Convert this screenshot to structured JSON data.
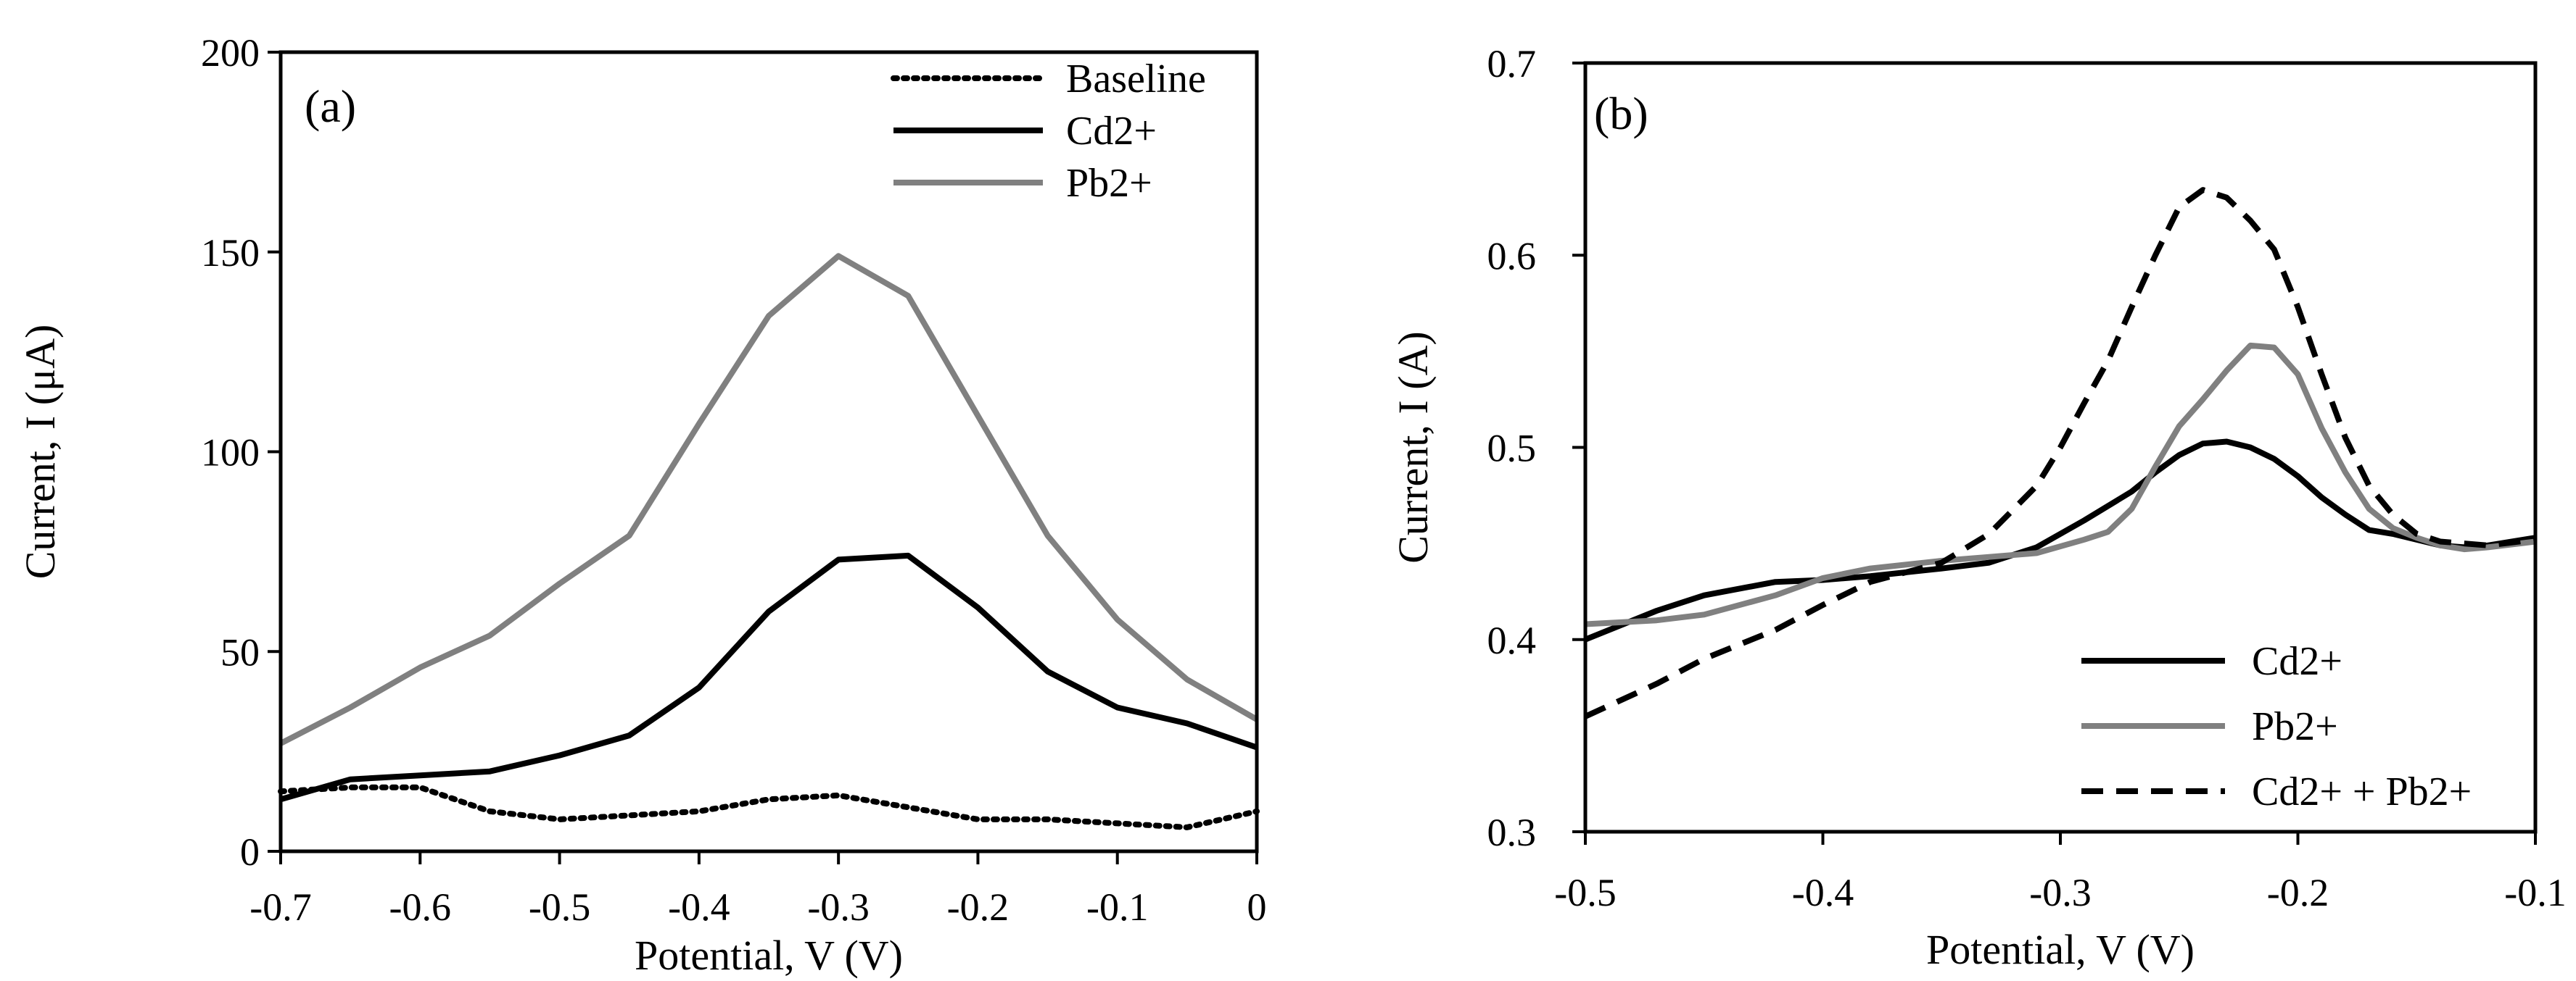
{
  "chart_data": [
    {
      "type": "line",
      "panel_label": "(a)",
      "xlabel": "Potential, V (V)",
      "ylabel": "Current, I (μA)",
      "xlim": [
        -0.7,
        0
      ],
      "ylim": [
        0,
        200
      ],
      "grid": false,
      "legend_position": "top-right",
      "x_ticks": [
        -0.7,
        -0.6,
        -0.5,
        -0.4,
        -0.3,
        -0.2,
        -0.1,
        0
      ],
      "x_tick_labels": [
        "-0.7",
        "-0.6",
        "-0.5",
        "-0.4",
        "-0.3",
        "-0.2",
        "-0.1",
        "0"
      ],
      "y_ticks": [
        0,
        50,
        100,
        150,
        200
      ],
      "y_tick_labels": [
        "0",
        "50",
        "100",
        "150",
        "200"
      ],
      "series": [
        {
          "name": "Baseline",
          "color": "#000000",
          "style": "dotted",
          "x": [
            -0.7,
            -0.65,
            -0.6,
            -0.55,
            -0.5,
            -0.45,
            -0.4,
            -0.35,
            -0.3,
            -0.25,
            -0.2,
            -0.15,
            -0.1,
            -0.05,
            0
          ],
          "y": [
            15,
            16,
            16,
            10,
            8,
            9,
            10,
            13,
            14,
            11,
            8,
            8,
            7,
            6,
            10
          ]
        },
        {
          "name": "Cd2+",
          "color": "#000000",
          "style": "solid",
          "x": [
            -0.7,
            -0.65,
            -0.6,
            -0.55,
            -0.5,
            -0.45,
            -0.4,
            -0.35,
            -0.3,
            -0.25,
            -0.2,
            -0.15,
            -0.1,
            -0.05,
            0
          ],
          "y": [
            13,
            18,
            19,
            20,
            24,
            29,
            41,
            60,
            73,
            74,
            61,
            45,
            36,
            32,
            26
          ]
        },
        {
          "name": "Pb2+",
          "color": "#808080",
          "style": "solid",
          "x": [
            -0.7,
            -0.65,
            -0.6,
            -0.55,
            -0.5,
            -0.45,
            -0.4,
            -0.35,
            -0.3,
            -0.25,
            -0.2,
            -0.15,
            -0.1,
            -0.05,
            0
          ],
          "y": [
            27,
            36,
            46,
            54,
            67,
            79,
            107,
            134,
            149,
            139,
            109,
            79,
            58,
            43,
            33
          ]
        }
      ]
    },
    {
      "type": "line",
      "panel_label": "(b)",
      "xlabel": "Potential, V (V)",
      "ylabel": "Current, I (A)",
      "xlim": [
        -0.5,
        -0.1
      ],
      "ylim": [
        0.3,
        0.7
      ],
      "grid": false,
      "legend_position": "bottom-right",
      "x_ticks": [
        -0.5,
        -0.4,
        -0.3,
        -0.2,
        -0.1
      ],
      "x_tick_labels": [
        "-0.5",
        "-0.4",
        "-0.3",
        "-0.2",
        "-0.1"
      ],
      "y_ticks": [
        0.3,
        0.4,
        0.5,
        0.6,
        0.7
      ],
      "y_tick_labels": [
        "0.3",
        "0.4",
        "0.5",
        "0.6",
        "0.7"
      ],
      "series": [
        {
          "name": "Cd2+",
          "color": "#000000",
          "style": "solid",
          "x": [
            -0.5,
            -0.47,
            -0.45,
            -0.42,
            -0.4,
            -0.38,
            -0.35,
            -0.33,
            -0.31,
            -0.29,
            -0.27,
            -0.26,
            -0.25,
            -0.24,
            -0.23,
            -0.22,
            -0.21,
            -0.2,
            -0.19,
            -0.18,
            -0.17,
            -0.16,
            -0.15,
            -0.14,
            -0.13,
            -0.12,
            -0.1
          ],
          "y": [
            0.4,
            0.415,
            0.423,
            0.43,
            0.431,
            0.433,
            0.437,
            0.44,
            0.448,
            0.462,
            0.477,
            0.487,
            0.496,
            0.502,
            0.503,
            0.5,
            0.494,
            0.485,
            0.474,
            0.465,
            0.457,
            0.455,
            0.452,
            0.449,
            0.448,
            0.449,
            0.453
          ]
        },
        {
          "name": "Pb2+",
          "color": "#808080",
          "style": "solid",
          "x": [
            -0.5,
            -0.47,
            -0.45,
            -0.42,
            -0.4,
            -0.38,
            -0.35,
            -0.33,
            -0.31,
            -0.29,
            -0.28,
            -0.27,
            -0.26,
            -0.25,
            -0.24,
            -0.23,
            -0.22,
            -0.21,
            -0.2,
            -0.19,
            -0.18,
            -0.17,
            -0.16,
            -0.15,
            -0.14,
            -0.13,
            -0.12,
            -0.1
          ],
          "y": [
            0.408,
            0.41,
            0.413,
            0.423,
            0.432,
            0.437,
            0.441,
            0.443,
            0.445,
            0.452,
            0.456,
            0.468,
            0.49,
            0.511,
            0.525,
            0.54,
            0.553,
            0.552,
            0.538,
            0.51,
            0.487,
            0.468,
            0.458,
            0.453,
            0.449,
            0.447,
            0.448,
            0.451
          ]
        },
        {
          "name": "Cd2+ + Pb2+",
          "color": "#000000",
          "style": "dashed",
          "x": [
            -0.5,
            -0.47,
            -0.45,
            -0.42,
            -0.4,
            -0.38,
            -0.35,
            -0.33,
            -0.31,
            -0.3,
            -0.29,
            -0.28,
            -0.27,
            -0.26,
            -0.25,
            -0.24,
            -0.23,
            -0.22,
            -0.21,
            -0.2,
            -0.19,
            -0.18,
            -0.17,
            -0.16,
            -0.15,
            -0.14,
            -0.12,
            -0.1
          ],
          "y": [
            0.36,
            0.377,
            0.39,
            0.405,
            0.418,
            0.43,
            0.44,
            0.455,
            0.48,
            0.5,
            0.523,
            0.545,
            0.573,
            0.6,
            0.625,
            0.634,
            0.63,
            0.618,
            0.603,
            0.573,
            0.538,
            0.505,
            0.48,
            0.465,
            0.455,
            0.451,
            0.449,
            0.452
          ]
        }
      ]
    }
  ]
}
